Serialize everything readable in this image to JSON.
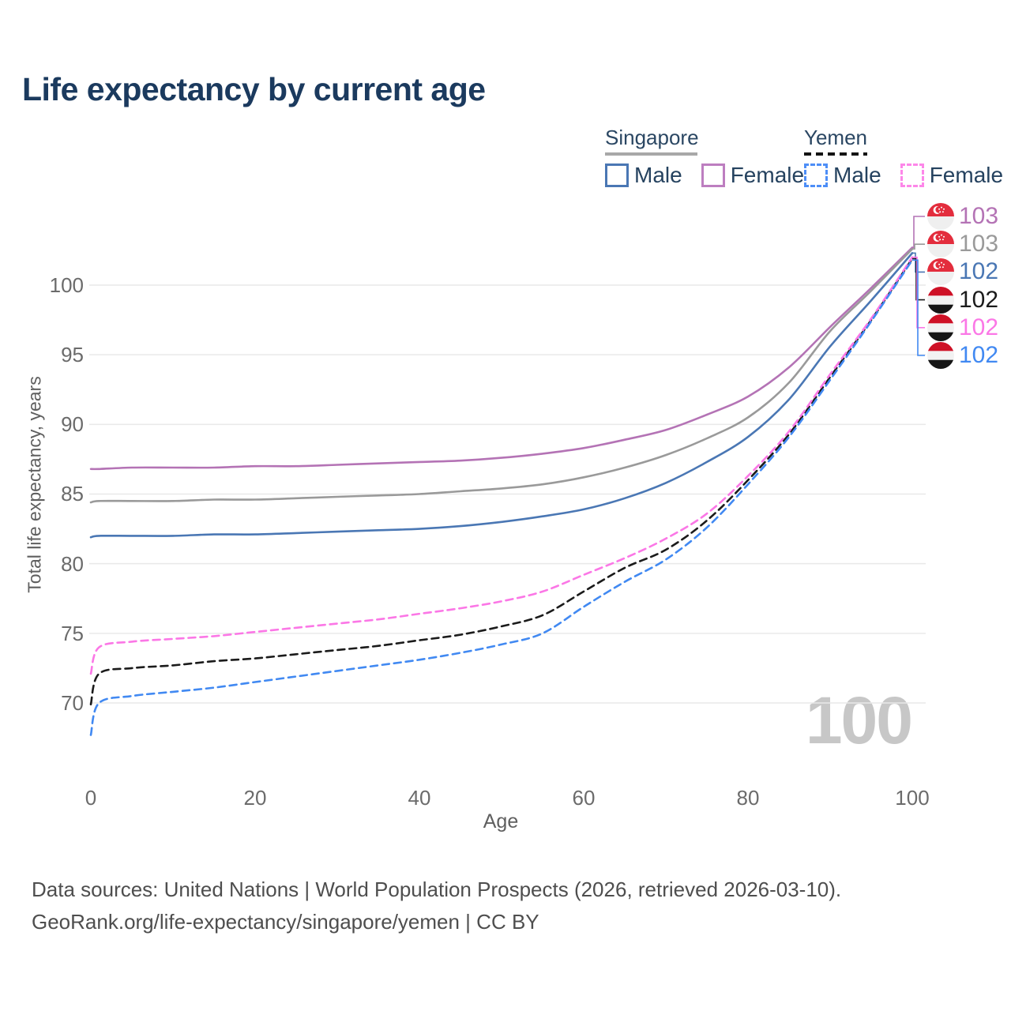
{
  "title": "Life expectancy by current age",
  "legend": {
    "groups": [
      {
        "title": "Singapore",
        "line_style": "solid",
        "line_color": "#a8a8a8",
        "items": [
          {
            "label": "Male",
            "color": "#4a77b4",
            "style": "solid"
          },
          {
            "label": "Female",
            "color": "#bd7ec0",
            "style": "solid"
          }
        ]
      },
      {
        "title": "Yemen",
        "line_style": "dashed",
        "line_color": "#141414",
        "items": [
          {
            "label": "Male",
            "color": "#4d8ef7",
            "style": "dashed"
          },
          {
            "label": "Female",
            "color": "#fd87e9",
            "style": "dashed"
          }
        ]
      }
    ]
  },
  "chart_data": {
    "type": "line",
    "title": "Life expectancy by current age",
    "xlabel": "Age",
    "ylabel": "Total life expectancy, years",
    "x_ticks": [
      0,
      20,
      40,
      60,
      80,
      100
    ],
    "y_ticks": [
      70,
      75,
      80,
      85,
      90,
      95,
      100
    ],
    "xlim": [
      0,
      100
    ],
    "ylim": [
      67.5,
      103.5
    ],
    "grid": "horizontal",
    "legend_position": "top-right",
    "watermark": "100",
    "ages": [
      0,
      1,
      5,
      10,
      15,
      20,
      25,
      30,
      35,
      40,
      45,
      50,
      55,
      60,
      65,
      70,
      75,
      80,
      85,
      90,
      95,
      100
    ],
    "series": [
      {
        "name": "Singapore Female",
        "country": "Singapore",
        "sex": "Female",
        "flag": "sg",
        "style": "solid",
        "color": "#b473b5",
        "end_label": "103",
        "values": [
          86.8,
          86.8,
          86.9,
          86.9,
          86.9,
          87.0,
          87.0,
          87.1,
          87.2,
          87.3,
          87.4,
          87.6,
          87.9,
          88.3,
          88.9,
          89.6,
          90.7,
          92.0,
          94.1,
          97.0,
          99.8,
          102.7
        ]
      },
      {
        "name": "Singapore Both sexes",
        "country": "Singapore",
        "sex": "Both sexes",
        "flag": "sg",
        "style": "solid",
        "color": "#9a9a9a",
        "end_label": "103",
        "values": [
          84.4,
          84.5,
          84.5,
          84.5,
          84.6,
          84.6,
          84.7,
          84.8,
          84.9,
          85.0,
          85.2,
          85.4,
          85.7,
          86.2,
          86.9,
          87.8,
          89.0,
          90.5,
          93.0,
          96.7,
          99.6,
          102.6
        ]
      },
      {
        "name": "Singapore Male",
        "country": "Singapore",
        "sex": "Male",
        "flag": "sg",
        "style": "solid",
        "color": "#4a77b4",
        "end_label": "102",
        "values": [
          81.9,
          82.0,
          82.0,
          82.0,
          82.1,
          82.1,
          82.2,
          82.3,
          82.4,
          82.5,
          82.7,
          83.0,
          83.4,
          83.9,
          84.7,
          85.8,
          87.3,
          89.1,
          91.8,
          95.6,
          98.9,
          102.3
        ]
      },
      {
        "name": "Yemen Both sexes",
        "country": "Yemen",
        "sex": "Both sexes",
        "flag": "ye",
        "style": "dashed",
        "color": "#1b1b1b",
        "end_label": "102",
        "values": [
          69.9,
          72.1,
          72.5,
          72.7,
          73.0,
          73.2,
          73.5,
          73.8,
          74.1,
          74.5,
          74.9,
          75.5,
          76.3,
          78.0,
          79.7,
          81.0,
          83.1,
          86.0,
          89.3,
          93.4,
          97.5,
          101.9
        ]
      },
      {
        "name": "Yemen Female",
        "country": "Yemen",
        "sex": "Female",
        "flag": "ye",
        "style": "dashed",
        "color": "#fb77e6",
        "end_label": "102",
        "values": [
          72.1,
          74.0,
          74.4,
          74.6,
          74.8,
          75.1,
          75.4,
          75.7,
          76.0,
          76.4,
          76.8,
          77.3,
          78.0,
          79.2,
          80.4,
          81.8,
          83.6,
          86.3,
          89.5,
          93.6,
          97.6,
          102.0
        ]
      },
      {
        "name": "Yemen Male",
        "country": "Yemen",
        "sex": "Male",
        "flag": "ye",
        "style": "dashed",
        "color": "#4189f2",
        "end_label": "102",
        "values": [
          67.7,
          70.0,
          70.5,
          70.8,
          71.1,
          71.5,
          71.9,
          72.3,
          72.7,
          73.1,
          73.6,
          74.2,
          75.0,
          76.9,
          78.7,
          80.3,
          82.6,
          85.7,
          89.1,
          93.2,
          97.4,
          101.8
        ]
      }
    ]
  },
  "colors": {
    "title": "#1b3a5e",
    "grid": "#e9e9e9",
    "tick_text": "#6b6b6b",
    "watermark": "#c7c7c7",
    "sg_flag_red": "#e32d3d",
    "ye_flag_red": "#ce1126",
    "ye_flag_black": "#161616"
  },
  "footer": {
    "line1": "Data sources: United Nations | World Population Prospects (2026, retrieved 2026-03-10).",
    "line2": "GeoRank.org/life-expectancy/singapore/yemen | CC BY"
  }
}
